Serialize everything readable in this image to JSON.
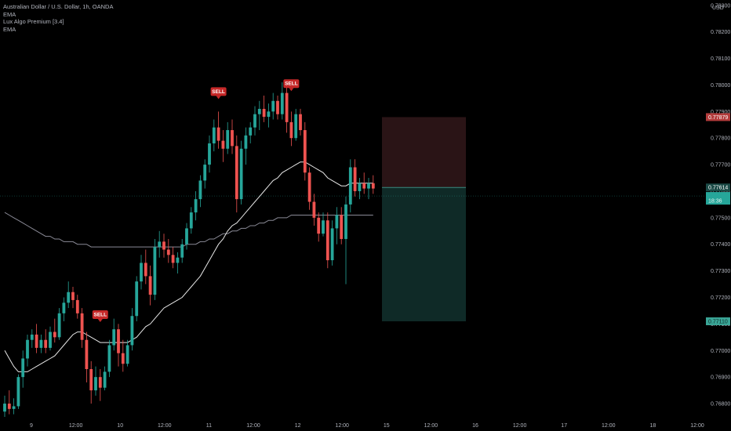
{
  "legend": {
    "title": "Australian Dollar / U.S. Dollar, 1h, OANDA",
    "indicators": [
      "EMA",
      "Lux Algo Premium [3.4]",
      "EMA"
    ]
  },
  "currency": "USD",
  "chart_data": {
    "type": "candlestick",
    "symbol": "AUDUSD",
    "timeframe": "1h",
    "ylim": [
      0.7675,
      0.7832
    ],
    "y_ticks": [
      "0.78300",
      "0.78200",
      "0.78100",
      "0.78000",
      "0.77900",
      "0.77800",
      "0.77700",
      "0.77600",
      "0.77500",
      "0.77400",
      "0.77300",
      "0.77200",
      "0.77100",
      "0.77000",
      "0.76900",
      "0.76800"
    ],
    "x_ticks": [
      "9",
      "12:00",
      "10",
      "12:00",
      "11",
      "12:00",
      "12",
      "12:00",
      "15",
      "12:00",
      "16",
      "12:00",
      "17",
      "12:00",
      "18",
      "12:00"
    ],
    "candles": [
      [
        0.7677,
        0.7683,
        0.7675,
        0.768
      ],
      [
        0.768,
        0.7685,
        0.7676,
        0.7678
      ],
      [
        0.7678,
        0.7682,
        0.7676,
        0.7679
      ],
      [
        0.7679,
        0.7691,
        0.7678,
        0.769
      ],
      [
        0.769,
        0.77,
        0.7686,
        0.7697
      ],
      [
        0.7697,
        0.7706,
        0.7694,
        0.7704
      ],
      [
        0.7704,
        0.7708,
        0.7701,
        0.7706
      ],
      [
        0.7706,
        0.771,
        0.7699,
        0.7701
      ],
      [
        0.7701,
        0.7706,
        0.7699,
        0.7704
      ],
      [
        0.7704,
        0.7708,
        0.7699,
        0.7701
      ],
      [
        0.7701,
        0.7709,
        0.77,
        0.7707
      ],
      [
        0.7707,
        0.7712,
        0.7703,
        0.7705
      ],
      [
        0.7705,
        0.7716,
        0.7704,
        0.7714
      ],
      [
        0.7714,
        0.772,
        0.7711,
        0.7718
      ],
      [
        0.7718,
        0.7726,
        0.7716,
        0.7722
      ],
      [
        0.7722,
        0.7724,
        0.7716,
        0.7719
      ],
      [
        0.7719,
        0.7721,
        0.7712,
        0.7714
      ],
      [
        0.7714,
        0.7716,
        0.7701,
        0.7704
      ],
      [
        0.7704,
        0.7707,
        0.7688,
        0.7693
      ],
      [
        0.7693,
        0.7696,
        0.768,
        0.7685
      ],
      [
        0.7685,
        0.7694,
        0.7683,
        0.769
      ],
      [
        0.769,
        0.7693,
        0.7681,
        0.7686
      ],
      [
        0.7686,
        0.7694,
        0.7685,
        0.7692
      ],
      [
        0.7692,
        0.7704,
        0.769,
        0.7702
      ],
      [
        0.7702,
        0.7712,
        0.77,
        0.7708
      ],
      [
        0.7708,
        0.771,
        0.7694,
        0.7699
      ],
      [
        0.7699,
        0.7704,
        0.7692,
        0.7695
      ],
      [
        0.7695,
        0.7704,
        0.7694,
        0.7702
      ],
      [
        0.7702,
        0.7716,
        0.77,
        0.7713
      ],
      [
        0.7713,
        0.7728,
        0.7711,
        0.7726
      ],
      [
        0.7726,
        0.7736,
        0.7723,
        0.7733
      ],
      [
        0.7733,
        0.7738,
        0.7725,
        0.7728
      ],
      [
        0.7728,
        0.7732,
        0.7717,
        0.7721
      ],
      [
        0.7721,
        0.7742,
        0.7719,
        0.7739
      ],
      [
        0.7739,
        0.7745,
        0.7735,
        0.7741
      ],
      [
        0.7741,
        0.7744,
        0.7735,
        0.7738
      ],
      [
        0.7738,
        0.7742,
        0.7733,
        0.7736
      ],
      [
        0.7736,
        0.7739,
        0.7731,
        0.7733
      ],
      [
        0.7733,
        0.7737,
        0.7729,
        0.7735
      ],
      [
        0.7735,
        0.7742,
        0.7733,
        0.774
      ],
      [
        0.774,
        0.7748,
        0.7738,
        0.7746
      ],
      [
        0.7746,
        0.7754,
        0.7744,
        0.7752
      ],
      [
        0.7752,
        0.776,
        0.7749,
        0.7757
      ],
      [
        0.7757,
        0.7766,
        0.7754,
        0.7764
      ],
      [
        0.7764,
        0.7772,
        0.7761,
        0.777
      ],
      [
        0.777,
        0.7781,
        0.7767,
        0.7778
      ],
      [
        0.7778,
        0.7787,
        0.7775,
        0.7784
      ],
      [
        0.7784,
        0.779,
        0.7776,
        0.7779
      ],
      [
        0.7779,
        0.7783,
        0.7771,
        0.7776
      ],
      [
        0.7776,
        0.7786,
        0.7774,
        0.7783
      ],
      [
        0.7783,
        0.7787,
        0.7774,
        0.7777
      ],
      [
        0.7777,
        0.7781,
        0.7752,
        0.7757
      ],
      [
        0.7757,
        0.7779,
        0.7755,
        0.7776
      ],
      [
        0.7776,
        0.7784,
        0.777,
        0.7781
      ],
      [
        0.7781,
        0.7786,
        0.7778,
        0.7784
      ],
      [
        0.7784,
        0.7792,
        0.7781,
        0.7789
      ],
      [
        0.7789,
        0.7794,
        0.7783,
        0.7791
      ],
      [
        0.7791,
        0.7796,
        0.7786,
        0.7788
      ],
      [
        0.7788,
        0.7793,
        0.7784,
        0.779
      ],
      [
        0.779,
        0.7797,
        0.7787,
        0.7794
      ],
      [
        0.7794,
        0.7796,
        0.7787,
        0.7789
      ],
      [
        0.7789,
        0.7801,
        0.7787,
        0.7797
      ],
      [
        0.7797,
        0.7799,
        0.7782,
        0.7786
      ],
      [
        0.7786,
        0.779,
        0.7777,
        0.778
      ],
      [
        0.778,
        0.7791,
        0.7779,
        0.7789
      ],
      [
        0.7789,
        0.7791,
        0.7781,
        0.7783
      ],
      [
        0.7783,
        0.7786,
        0.7764,
        0.7767
      ],
      [
        0.7767,
        0.7769,
        0.7753,
        0.7756
      ],
      [
        0.7756,
        0.7759,
        0.7747,
        0.775
      ],
      [
        0.775,
        0.7752,
        0.7741,
        0.7744
      ],
      [
        0.7744,
        0.7752,
        0.7743,
        0.7749
      ],
      [
        0.7749,
        0.7752,
        0.7731,
        0.7734
      ],
      [
        0.7734,
        0.7749,
        0.7732,
        0.7746
      ],
      [
        0.7746,
        0.7754,
        0.774,
        0.7751
      ],
      [
        0.7751,
        0.7754,
        0.774,
        0.7742
      ],
      [
        0.7742,
        0.7758,
        0.7725,
        0.7755
      ],
      [
        0.7755,
        0.7772,
        0.7752,
        0.7769
      ],
      [
        0.7769,
        0.7772,
        0.7758,
        0.776
      ],
      [
        0.776,
        0.7765,
        0.7757,
        0.7763
      ],
      [
        0.7763,
        0.7767,
        0.7759,
        0.7761
      ],
      [
        0.7761,
        0.7765,
        0.7757,
        0.7763
      ],
      [
        0.7763,
        0.7766,
        0.7759,
        0.7761
      ]
    ],
    "ema_fast": [
      0.77,
      0.7697,
      0.7694,
      0.7692,
      0.7692,
      0.7692,
      0.7693,
      0.7694,
      0.7695,
      0.7696,
      0.7697,
      0.7698,
      0.77,
      0.7702,
      0.7704,
      0.7706,
      0.7707,
      0.7707,
      0.7706,
      0.7705,
      0.7704,
      0.7703,
      0.7703,
      0.7703,
      0.7703,
      0.7703,
      0.7703,
      0.7703,
      0.7704,
      0.7705,
      0.7707,
      0.7709,
      0.771,
      0.7712,
      0.7714,
      0.7716,
      0.7717,
      0.7718,
      0.7719,
      0.772,
      0.7722,
      0.7724,
      0.7726,
      0.7728,
      0.7731,
      0.7734,
      0.7737,
      0.774,
      0.7742,
      0.7745,
      0.7747,
      0.7748,
      0.775,
      0.7752,
      0.7754,
      0.7756,
      0.7758,
      0.776,
      0.7762,
      0.7764,
      0.7765,
      0.7767,
      0.7768,
      0.7769,
      0.777,
      0.7771,
      0.7771,
      0.777,
      0.7769,
      0.7768,
      0.7767,
      0.7765,
      0.7764,
      0.7763,
      0.7762,
      0.7762,
      0.7763,
      0.7763,
      0.7763,
      0.7763,
      0.7763,
      0.7763
    ],
    "ema_slow": [
      0.7752,
      0.7751,
      0.775,
      0.7749,
      0.7748,
      0.7747,
      0.7746,
      0.7745,
      0.7744,
      0.7743,
      0.7743,
      0.7742,
      0.7742,
      0.7741,
      0.7741,
      0.7741,
      0.774,
      0.774,
      0.774,
      0.7739,
      0.7739,
      0.7739,
      0.7739,
      0.7739,
      0.7739,
      0.7739,
      0.7739,
      0.7739,
      0.7739,
      0.7739,
      0.7739,
      0.7739,
      0.7739,
      0.7739,
      0.7739,
      0.7739,
      0.7739,
      0.7739,
      0.7739,
      0.7739,
      0.774,
      0.774,
      0.774,
      0.7741,
      0.7741,
      0.7742,
      0.7742,
      0.7743,
      0.7744,
      0.7744,
      0.7745,
      0.7745,
      0.7746,
      0.7746,
      0.7747,
      0.7747,
      0.7748,
      0.7748,
      0.7749,
      0.7749,
      0.775,
      0.775,
      0.775,
      0.7751,
      0.7751,
      0.7751,
      0.7751,
      0.7751,
      0.7751,
      0.7751,
      0.7751,
      0.7751,
      0.7751,
      0.7751,
      0.7751,
      0.7751,
      0.7751,
      0.7751,
      0.7751,
      0.7751,
      0.7751,
      0.7751
    ],
    "signals": [
      {
        "label": "SELL",
        "candle": 21,
        "price": 0.7711
      },
      {
        "label": "SELL",
        "candle": 47,
        "price": 0.7795
      },
      {
        "label": "SELL",
        "candle": 63,
        "price": 0.7798
      }
    ],
    "position": {
      "entry": 0.77614,
      "stop": 0.77879,
      "target": 0.7711
    },
    "price_labels": {
      "current": "0.77614",
      "stop": "0.77879",
      "target": "0.77110",
      "countdown": "18:36"
    },
    "colors": {
      "up": "#26a69a",
      "down": "#ef5350",
      "ema_fast": "#e8e8e8",
      "ema_slow": "#8a8a96",
      "stop_zone": "#2a1416",
      "target_zone": "#0f2a27",
      "signal": "#c62828"
    }
  }
}
